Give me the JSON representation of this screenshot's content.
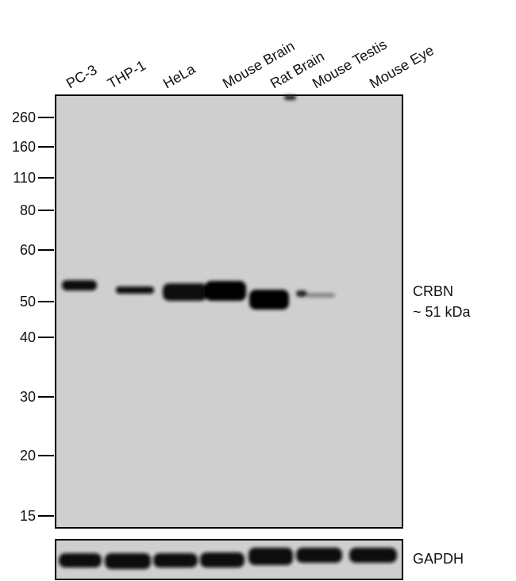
{
  "lanes": [
    "PC-3",
    "THP-1",
    "HeLa",
    "Mouse Brain",
    "Rat Brain",
    "Mouse Testis",
    "Mouse Eye"
  ],
  "markers": [
    260,
    160,
    110,
    80,
    60,
    50,
    40,
    30,
    20,
    15
  ],
  "target": {
    "name": "CRBN",
    "size": "~ 51 kDa"
  },
  "loading_control": "GAPDH"
}
